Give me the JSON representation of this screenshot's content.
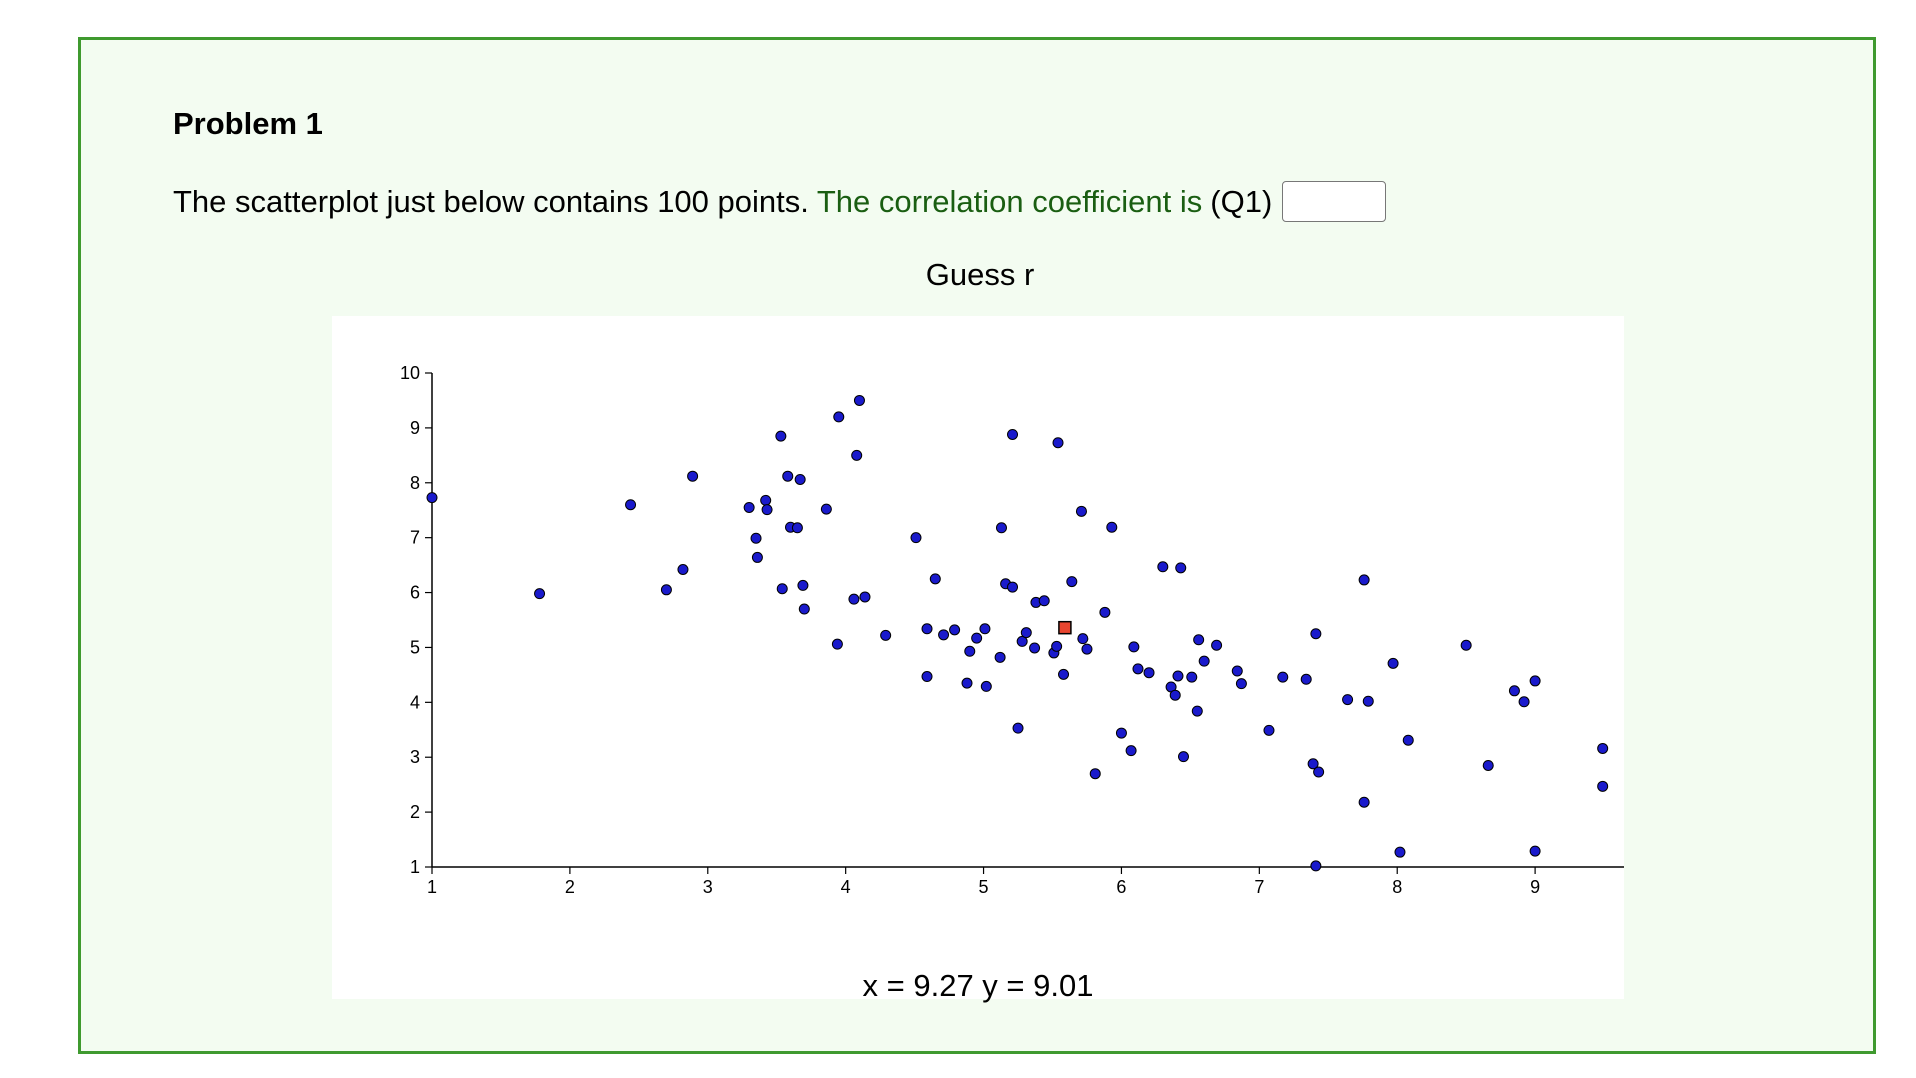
{
  "problem": {
    "title": "Problem 1",
    "question_prefix": "The scatterplot just below contains 100 points.",
    "question_highlight": "The correlation coefficient is",
    "question_tag": "(Q1)",
    "answer_value": ""
  },
  "colors": {
    "border": "#3f9a2f",
    "panel_bg": "#f3fcf1",
    "highlight_text": "#1a5e12",
    "point_fill": "#1a1acc",
    "selected_fill": "#e8452f"
  },
  "readout": {
    "text": "x = 9.27 y = 9.01"
  },
  "chart_data": {
    "type": "scatter",
    "title": "Guess r",
    "xlabel": "",
    "ylabel": "",
    "xlim": [
      1,
      10
    ],
    "ylim": [
      1,
      10
    ],
    "x_ticks": [
      "1",
      "2",
      "3",
      "4",
      "5",
      "6",
      "7",
      "8",
      "9",
      "10"
    ],
    "y_ticks": [
      "1",
      "2",
      "3",
      "4",
      "5",
      "6",
      "7",
      "8",
      "9",
      "10"
    ],
    "grid": false,
    "points": [
      [
        1.0,
        7.73
      ],
      [
        1.78,
        5.98
      ],
      [
        2.44,
        7.6
      ],
      [
        2.7,
        6.05
      ],
      [
        2.82,
        6.42
      ],
      [
        2.89,
        8.12
      ],
      [
        3.3,
        7.55
      ],
      [
        3.35,
        6.99
      ],
      [
        3.36,
        6.64
      ],
      [
        3.42,
        7.68
      ],
      [
        3.43,
        7.51
      ],
      [
        3.53,
        8.85
      ],
      [
        3.54,
        6.07
      ],
      [
        3.58,
        8.12
      ],
      [
        3.6,
        7.19
      ],
      [
        3.65,
        7.18
      ],
      [
        3.67,
        8.06
      ],
      [
        3.69,
        6.13
      ],
      [
        3.7,
        5.7
      ],
      [
        3.86,
        7.52
      ],
      [
        3.94,
        5.06
      ],
      [
        3.95,
        9.2
      ],
      [
        4.06,
        5.88
      ],
      [
        4.08,
        8.5
      ],
      [
        4.1,
        9.5
      ],
      [
        4.14,
        5.92
      ],
      [
        4.29,
        5.22
      ],
      [
        4.51,
        7.0
      ],
      [
        4.59,
        5.34
      ],
      [
        4.59,
        4.47
      ],
      [
        4.65,
        6.25
      ],
      [
        4.71,
        5.23
      ],
      [
        4.79,
        5.32
      ],
      [
        4.88,
        4.35
      ],
      [
        4.9,
        4.93
      ],
      [
        4.95,
        5.17
      ],
      [
        5.01,
        5.34
      ],
      [
        5.02,
        4.29
      ],
      [
        5.12,
        4.82
      ],
      [
        5.13,
        7.18
      ],
      [
        5.16,
        6.16
      ],
      [
        5.21,
        6.1
      ],
      [
        5.21,
        8.88
      ],
      [
        5.25,
        3.53
      ],
      [
        5.28,
        5.11
      ],
      [
        5.31,
        5.27
      ],
      [
        5.37,
        4.99
      ],
      [
        5.38,
        5.82
      ],
      [
        5.44,
        5.85
      ],
      [
        5.51,
        4.9
      ],
      [
        5.53,
        5.02
      ],
      [
        5.54,
        8.73
      ],
      [
        5.58,
        4.51
      ],
      [
        5.64,
        6.2
      ],
      [
        5.71,
        7.48
      ],
      [
        5.72,
        5.16
      ],
      [
        5.75,
        4.97
      ],
      [
        5.81,
        2.7
      ],
      [
        5.88,
        5.64
      ],
      [
        5.93,
        7.19
      ],
      [
        6.0,
        3.44
      ],
      [
        6.07,
        3.12
      ],
      [
        6.09,
        5.01
      ],
      [
        6.12,
        4.61
      ],
      [
        6.2,
        4.54
      ],
      [
        6.3,
        6.47
      ],
      [
        6.36,
        4.28
      ],
      [
        6.39,
        4.13
      ],
      [
        6.41,
        4.48
      ],
      [
        6.43,
        6.45
      ],
      [
        6.45,
        3.01
      ],
      [
        6.51,
        4.46
      ],
      [
        6.55,
        3.84
      ],
      [
        6.56,
        5.14
      ],
      [
        6.6,
        4.75
      ],
      [
        6.69,
        5.04
      ],
      [
        6.84,
        4.57
      ],
      [
        6.87,
        4.34
      ],
      [
        7.07,
        3.49
      ],
      [
        7.17,
        4.46
      ],
      [
        7.34,
        4.42
      ],
      [
        7.39,
        2.88
      ],
      [
        7.41,
        5.25
      ],
      [
        7.41,
        1.02
      ],
      [
        7.43,
        2.73
      ],
      [
        7.64,
        4.05
      ],
      [
        7.76,
        6.23
      ],
      [
        7.76,
        2.18
      ],
      [
        7.79,
        4.02
      ],
      [
        7.97,
        4.71
      ],
      [
        8.02,
        1.27
      ],
      [
        8.08,
        3.31
      ],
      [
        8.5,
        5.04
      ],
      [
        8.66,
        2.85
      ],
      [
        8.85,
        4.21
      ],
      [
        8.92,
        4.01
      ],
      [
        9.0,
        4.39
      ],
      [
        9.0,
        1.29
      ],
      [
        9.49,
        3.16
      ],
      [
        9.49,
        2.47
      ]
    ],
    "selected_point": [
      5.59,
      5.36
    ]
  }
}
